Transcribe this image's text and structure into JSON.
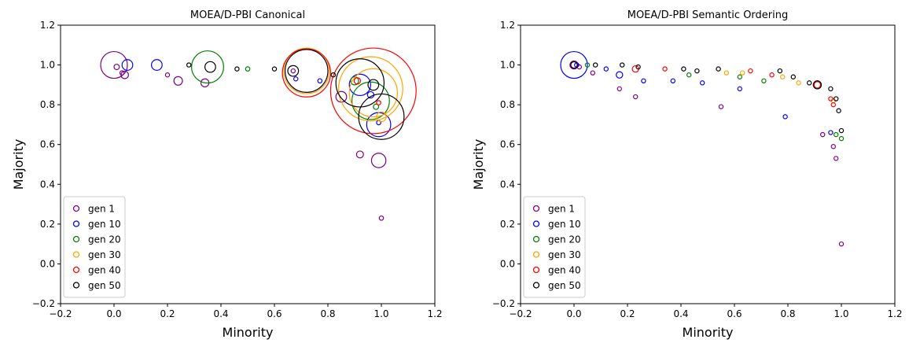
{
  "series_colors": {
    "gen 1": "#800080",
    "gen 10": "#0000ff",
    "gen 20": "#008000",
    "gen 30": "#ffa500",
    "gen 40": "#ff0000",
    "gen 50": "#000000"
  },
  "chart_data": [
    {
      "type": "scatter",
      "title": "MOEA/D-PBI Canonical",
      "xlabel": "Minority",
      "ylabel": "Majority",
      "xlim": [
        -0.2,
        1.2
      ],
      "ylim": [
        -0.2,
        1.2
      ],
      "xticks": [
        "−0.2",
        "0.0",
        "0.2",
        "0.4",
        "0.6",
        "0.8",
        "1.0",
        "1.2"
      ],
      "yticks": [
        "−0.2",
        "0.0",
        "0.2",
        "0.4",
        "0.6",
        "0.8",
        "1.0",
        "1.2"
      ],
      "grid": false,
      "legend_position": "lower-left",
      "series": [
        {
          "name": "gen 1",
          "points": [
            {
              "x": 0.0,
              "y": 1.0,
              "r": 0.05
            },
            {
              "x": 0.01,
              "y": 0.99,
              "r": 0.01
            },
            {
              "x": 0.03,
              "y": 0.96,
              "r": 0.008
            },
            {
              "x": 0.04,
              "y": 0.95,
              "r": 0.014
            },
            {
              "x": 0.2,
              "y": 0.95,
              "r": 0.005
            },
            {
              "x": 0.24,
              "y": 0.92,
              "r": 0.016
            },
            {
              "x": 0.34,
              "y": 0.91,
              "r": 0.015
            },
            {
              "x": 0.85,
              "y": 0.84,
              "r": 0.02
            },
            {
              "x": 0.92,
              "y": 0.55,
              "r": 0.013
            },
            {
              "x": 0.99,
              "y": 0.52,
              "r": 0.027
            },
            {
              "x": 1.0,
              "y": 0.23,
              "r": 0.008
            },
            {
              "x": 0.67,
              "y": 0.97,
              "r": 0.005
            }
          ]
        },
        {
          "name": "gen 10",
          "points": [
            {
              "x": 0.05,
              "y": 1.0,
              "r": 0.02
            },
            {
              "x": 0.16,
              "y": 1.0,
              "r": 0.02
            },
            {
              "x": 0.68,
              "y": 0.93,
              "r": 0.006
            },
            {
              "x": 0.77,
              "y": 0.92,
              "r": 0.008
            },
            {
              "x": 0.92,
              "y": 0.9,
              "r": 0.04
            },
            {
              "x": 0.96,
              "y": 0.85,
              "r": 0.012
            },
            {
              "x": 0.99,
              "y": 0.7,
              "r": 0.045
            },
            {
              "x": 0.99,
              "y": 0.71,
              "r": 0.008
            }
          ]
        },
        {
          "name": "gen 20",
          "points": [
            {
              "x": 0.35,
              "y": 0.99,
              "r": 0.06
            },
            {
              "x": 0.5,
              "y": 0.98,
              "r": 0.008
            },
            {
              "x": 0.9,
              "y": 0.92,
              "r": 0.015
            },
            {
              "x": 0.96,
              "y": 0.82,
              "r": 0.07
            },
            {
              "x": 0.98,
              "y": 0.79,
              "r": 0.01
            }
          ]
        },
        {
          "name": "gen 30",
          "points": [
            {
              "x": 0.72,
              "y": 0.97,
              "r": 0.085
            },
            {
              "x": 0.96,
              "y": 0.88,
              "r": 0.12
            },
            {
              "x": 0.97,
              "y": 0.86,
              "r": 0.09
            },
            {
              "x": 1.0,
              "y": 0.74,
              "r": 0.018
            }
          ]
        },
        {
          "name": "gen 40",
          "points": [
            {
              "x": 0.72,
              "y": 0.96,
              "r": 0.09
            },
            {
              "x": 0.97,
              "y": 0.87,
              "r": 0.16
            },
            {
              "x": 0.91,
              "y": 0.92,
              "r": 0.012
            },
            {
              "x": 0.99,
              "y": 0.81,
              "r": 0.008
            }
          ]
        },
        {
          "name": "gen 50",
          "points": [
            {
              "x": 0.28,
              "y": 1.0,
              "r": 0.005
            },
            {
              "x": 0.36,
              "y": 0.99,
              "r": 0.02
            },
            {
              "x": 0.46,
              "y": 0.98,
              "r": 0.005
            },
            {
              "x": 0.6,
              "y": 0.98,
              "r": 0.005
            },
            {
              "x": 0.67,
              "y": 0.97,
              "r": 0.02
            },
            {
              "x": 0.72,
              "y": 0.97,
              "r": 0.08
            },
            {
              "x": 0.82,
              "y": 0.95,
              "r": 0.008
            },
            {
              "x": 0.92,
              "y": 0.91,
              "r": 0.09
            },
            {
              "x": 0.97,
              "y": 0.9,
              "r": 0.02
            },
            {
              "x": 1.0,
              "y": 0.74,
              "r": 0.085
            }
          ]
        }
      ]
    },
    {
      "type": "scatter",
      "title": "MOEA/D-PBI Semantic Ordering",
      "xlabel": "Minority",
      "ylabel": "Majority",
      "xlim": [
        -0.2,
        1.2
      ],
      "ylim": [
        -0.2,
        1.2
      ],
      "xticks": [
        "−0.2",
        "0.0",
        "0.2",
        "0.4",
        "0.6",
        "0.8",
        "1.0",
        "1.2"
      ],
      "yticks": [
        "−0.2",
        "0.0",
        "0.2",
        "0.4",
        "0.6",
        "0.8",
        "1.0",
        "1.2"
      ],
      "grid": false,
      "legend_position": "lower-left",
      "series": [
        {
          "name": "gen 1",
          "points": [
            {
              "x": 0.0,
              "y": 1.0,
              "r": 0.015
            },
            {
              "x": 0.02,
              "y": 0.99,
              "r": 0.005
            },
            {
              "x": 0.07,
              "y": 0.96,
              "r": 0.005
            },
            {
              "x": 0.17,
              "y": 0.88,
              "r": 0.005
            },
            {
              "x": 0.23,
              "y": 0.84,
              "r": 0.005
            },
            {
              "x": 0.55,
              "y": 0.79,
              "r": 0.005
            },
            {
              "x": 0.93,
              "y": 0.65,
              "r": 0.005
            },
            {
              "x": 0.97,
              "y": 0.59,
              "r": 0.005
            },
            {
              "x": 0.98,
              "y": 0.53,
              "r": 0.005
            },
            {
              "x": 1.0,
              "y": 0.1,
              "r": 0.005
            }
          ]
        },
        {
          "name": "gen 10",
          "points": [
            {
              "x": 0.0,
              "y": 1.0,
              "r": 0.05
            },
            {
              "x": 0.01,
              "y": 1.0,
              "r": 0.008
            },
            {
              "x": 0.12,
              "y": 0.98,
              "r": 0.005
            },
            {
              "x": 0.17,
              "y": 0.95,
              "r": 0.012
            },
            {
              "x": 0.26,
              "y": 0.92,
              "r": 0.005
            },
            {
              "x": 0.37,
              "y": 0.92,
              "r": 0.005
            },
            {
              "x": 0.48,
              "y": 0.91,
              "r": 0.005
            },
            {
              "x": 0.62,
              "y": 0.88,
              "r": 0.005
            },
            {
              "x": 0.79,
              "y": 0.74,
              "r": 0.005
            },
            {
              "x": 0.96,
              "y": 0.66,
              "r": 0.005
            }
          ]
        },
        {
          "name": "gen 20",
          "points": [
            {
              "x": 0.05,
              "y": 1.0,
              "r": 0.005
            },
            {
              "x": 0.43,
              "y": 0.95,
              "r": 0.005
            },
            {
              "x": 0.62,
              "y": 0.94,
              "r": 0.005
            },
            {
              "x": 0.71,
              "y": 0.92,
              "r": 0.005
            },
            {
              "x": 0.98,
              "y": 0.65,
              "r": 0.005
            },
            {
              "x": 1.0,
              "y": 0.63,
              "r": 0.005
            }
          ]
        },
        {
          "name": "gen 30",
          "points": [
            {
              "x": 0.57,
              "y": 0.96,
              "r": 0.005
            },
            {
              "x": 0.63,
              "y": 0.96,
              "r": 0.005
            },
            {
              "x": 0.78,
              "y": 0.94,
              "r": 0.005
            },
            {
              "x": 0.84,
              "y": 0.91,
              "r": 0.005
            },
            {
              "x": 0.97,
              "y": 0.82,
              "r": 0.005
            }
          ]
        },
        {
          "name": "gen 40",
          "points": [
            {
              "x": 0.23,
              "y": 0.98,
              "r": 0.012
            },
            {
              "x": 0.34,
              "y": 0.98,
              "r": 0.005
            },
            {
              "x": 0.66,
              "y": 0.97,
              "r": 0.005
            },
            {
              "x": 0.74,
              "y": 0.95,
              "r": 0.005
            },
            {
              "x": 0.91,
              "y": 0.9,
              "r": 0.012
            },
            {
              "x": 0.96,
              "y": 0.83,
              "r": 0.005
            },
            {
              "x": 0.97,
              "y": 0.8,
              "r": 0.005
            }
          ]
        },
        {
          "name": "gen 50",
          "points": [
            {
              "x": 0.0,
              "y": 1.0,
              "r": 0.012
            },
            {
              "x": 0.08,
              "y": 1.0,
              "r": 0.005
            },
            {
              "x": 0.18,
              "y": 1.0,
              "r": 0.005
            },
            {
              "x": 0.24,
              "y": 0.99,
              "r": 0.005
            },
            {
              "x": 0.41,
              "y": 0.98,
              "r": 0.005
            },
            {
              "x": 0.46,
              "y": 0.97,
              "r": 0.005
            },
            {
              "x": 0.54,
              "y": 0.98,
              "r": 0.005
            },
            {
              "x": 0.77,
              "y": 0.97,
              "r": 0.005
            },
            {
              "x": 0.82,
              "y": 0.94,
              "r": 0.005
            },
            {
              "x": 0.88,
              "y": 0.91,
              "r": 0.005
            },
            {
              "x": 0.91,
              "y": 0.9,
              "r": 0.015
            },
            {
              "x": 0.96,
              "y": 0.88,
              "r": 0.005
            },
            {
              "x": 0.98,
              "y": 0.83,
              "r": 0.005
            },
            {
              "x": 0.99,
              "y": 0.77,
              "r": 0.005
            },
            {
              "x": 1.0,
              "y": 0.67,
              "r": 0.005
            }
          ]
        }
      ]
    }
  ]
}
